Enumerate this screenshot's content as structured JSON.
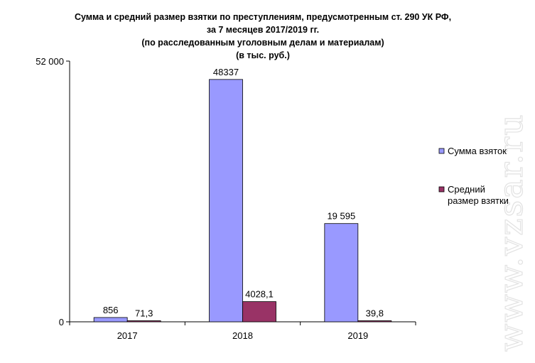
{
  "chart_data": {
    "type": "bar",
    "title_lines": [
      "Сумма и средний размер взятки по преступлениям, предусмотренным ст. 290 УК РФ,",
      "за  7 месяцев 2017/2019 гг.",
      "(по расследованным уголовным делам и материалам)",
      "(в тыс. руб.)"
    ],
    "categories": [
      "2017",
      "2018",
      "2019"
    ],
    "series": [
      {
        "name": "Сумма взяток",
        "color": "#9999ff",
        "values": [
          856,
          48337,
          19595
        ],
        "labels": [
          "856",
          "48337",
          "19 595"
        ]
      },
      {
        "name": "Средний размер взятки",
        "color": "#993366",
        "values": [
          71.3,
          4028.1,
          39.8
        ],
        "labels": [
          "71,3",
          "4028,1",
          "39,8"
        ]
      }
    ],
    "ylim": [
      0,
      52000
    ],
    "yticks": [
      {
        "value": 0,
        "label": "0"
      },
      {
        "value": 52000,
        "label": "52 000"
      }
    ],
    "legend": {
      "placement": "right",
      "entries": [
        "Сумма взяток",
        "Средний",
        "размер взятки"
      ]
    },
    "grid": false
  },
  "watermark": "www.vzsar.ru"
}
